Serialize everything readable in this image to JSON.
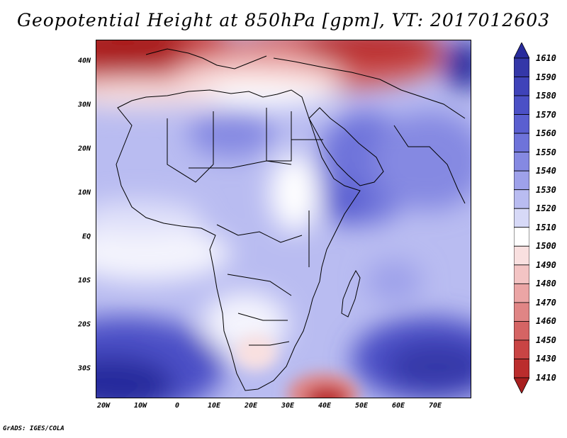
{
  "title": "Geopotential Height at 850hPa [gpm], VT: 2017012603",
  "credit": "GrADS: IGES/COLA",
  "map": {
    "variable": "Geopotential Height",
    "level": "850hPa",
    "units": "gpm",
    "valid_time": "2017012603",
    "lon_range": [
      -23,
      79
    ],
    "lat_range": [
      -37,
      45
    ],
    "lat_labels": [
      "40N",
      "30N",
      "20N",
      "10N",
      "EQ",
      "10S",
      "20S",
      "30S"
    ],
    "lon_labels": [
      "20W",
      "10W",
      "0",
      "10E",
      "20E",
      "30E",
      "40E",
      "50E",
      "60E",
      "70E"
    ]
  },
  "colorbar": {
    "levels": [
      "1610",
      "1590",
      "1580",
      "1570",
      "1560",
      "1550",
      "1540",
      "1530",
      "1520",
      "1510",
      "1500",
      "1490",
      "1480",
      "1470",
      "1460",
      "1450",
      "1430",
      "1410"
    ],
    "colors": [
      "#282b9c",
      "#3437a8",
      "#3f43b9",
      "#4b50c6",
      "#5a5fd0",
      "#6e73da",
      "#8589e2",
      "#9ea1ea",
      "#b9bcf1",
      "#d7d9f7",
      "#ffffff",
      "#f9e0e0",
      "#f3c4c4",
      "#eba5a5",
      "#e08585",
      "#d56464",
      "#c94444",
      "#bb2d2d",
      "#a81f1f"
    ]
  }
}
